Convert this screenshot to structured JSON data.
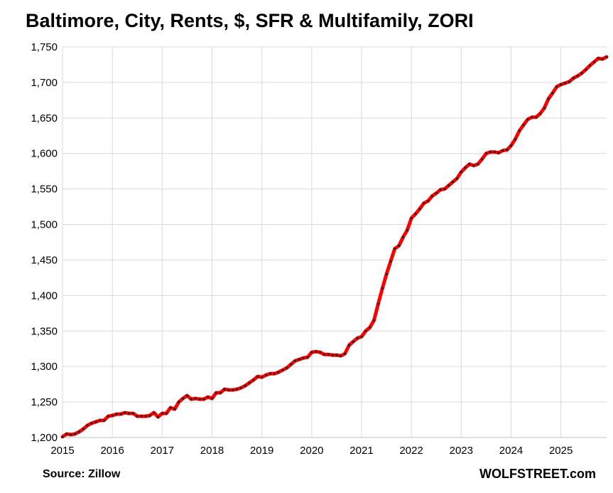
{
  "chart_data": {
    "type": "line",
    "title": "Baltimore, City, Rents, $, SFR & Multifamily, ZORI",
    "xlabel": "",
    "ylabel": "",
    "ylim": [
      1200,
      1750
    ],
    "xlim": [
      2015,
      2025.917
    ],
    "y_ticks": [
      1200,
      1250,
      1300,
      1350,
      1400,
      1450,
      1500,
      1550,
      1600,
      1650,
      1700,
      1750
    ],
    "y_tick_labels": [
      "1,200",
      "1,250",
      "1,300",
      "1,350",
      "1,400",
      "1,450",
      "1,500",
      "1,550",
      "1,600",
      "1,650",
      "1,700",
      "1,750"
    ],
    "x_ticks": [
      2015,
      2016,
      2017,
      2018,
      2019,
      2020,
      2021,
      2022,
      2023,
      2024,
      2025
    ],
    "x_tick_labels": [
      "2015",
      "2016",
      "2017",
      "2018",
      "2019",
      "2020",
      "2021",
      "2022",
      "2023",
      "2024",
      "2025"
    ],
    "grid": true,
    "legend": "none",
    "series": [
      {
        "color": "#ff0000",
        "marker_color": "#222222",
        "x": [
          2015.0,
          2015.083,
          2015.167,
          2015.25,
          2015.333,
          2015.417,
          2015.5,
          2015.583,
          2015.667,
          2015.75,
          2015.833,
          2015.917,
          2016.0,
          2016.083,
          2016.167,
          2016.25,
          2016.333,
          2016.417,
          2016.5,
          2016.583,
          2016.667,
          2016.75,
          2016.833,
          2016.917,
          2017.0,
          2017.083,
          2017.167,
          2017.25,
          2017.333,
          2017.417,
          2017.5,
          2017.583,
          2017.667,
          2017.75,
          2017.833,
          2017.917,
          2018.0,
          2018.083,
          2018.167,
          2018.25,
          2018.333,
          2018.417,
          2018.5,
          2018.583,
          2018.667,
          2018.75,
          2018.833,
          2018.917,
          2019.0,
          2019.083,
          2019.167,
          2019.25,
          2019.333,
          2019.417,
          2019.5,
          2019.583,
          2019.667,
          2019.75,
          2019.833,
          2019.917,
          2020.0,
          2020.083,
          2020.167,
          2020.25,
          2020.333,
          2020.417,
          2020.5,
          2020.583,
          2020.667,
          2020.75,
          2020.833,
          2020.917,
          2021.0,
          2021.083,
          2021.167,
          2021.25,
          2021.333,
          2021.417,
          2021.5,
          2021.583,
          2021.667,
          2021.75,
          2021.833,
          2021.917,
          2022.0,
          2022.083,
          2022.167,
          2022.25,
          2022.333,
          2022.417,
          2022.5,
          2022.583,
          2022.667,
          2022.75,
          2022.833,
          2022.917,
          2023.0,
          2023.083,
          2023.167,
          2023.25,
          2023.333,
          2023.417,
          2023.5,
          2023.583,
          2023.667,
          2023.75,
          2023.833,
          2023.917,
          2024.0,
          2024.083,
          2024.167,
          2024.25,
          2024.333,
          2024.417,
          2024.5,
          2024.583,
          2024.667,
          2024.75,
          2024.833,
          2024.917,
          2025.0,
          2025.083,
          2025.167,
          2025.25,
          2025.333,
          2025.417,
          2025.5,
          2025.583,
          2025.667,
          2025.75,
          2025.833,
          2025.917
        ],
        "y": [
          1201,
          1205,
          1204,
          1205,
          1208,
          1212,
          1217,
          1220,
          1222,
          1224,
          1224,
          1230,
          1231,
          1233,
          1233,
          1235,
          1234,
          1234,
          1230,
          1230,
          1230,
          1231,
          1235,
          1229,
          1234,
          1234,
          1242,
          1240,
          1250,
          1255,
          1259,
          1254,
          1255,
          1254,
          1254,
          1257,
          1255,
          1263,
          1263,
          1268,
          1267,
          1267,
          1268,
          1270,
          1273,
          1277,
          1281,
          1286,
          1285,
          1288,
          1290,
          1290,
          1292,
          1295,
          1298,
          1303,
          1308,
          1310,
          1312,
          1313,
          1320,
          1321,
          1320,
          1317,
          1317,
          1316,
          1316,
          1315,
          1318,
          1330,
          1335,
          1340,
          1342,
          1350,
          1355,
          1365,
          1388,
          1410,
          1430,
          1448,
          1466,
          1470,
          1482,
          1492,
          1509,
          1515,
          1522,
          1530,
          1533,
          1540,
          1544,
          1549,
          1550,
          1555,
          1560,
          1565,
          1574,
          1580,
          1585,
          1583,
          1585,
          1592,
          1600,
          1602,
          1602,
          1601,
          1604,
          1605,
          1611,
          1620,
          1632,
          1640,
          1648,
          1651,
          1651,
          1656,
          1664,
          1677,
          1685,
          1694,
          1697,
          1699,
          1701,
          1706,
          1709,
          1713,
          1718,
          1724,
          1729,
          1734,
          1733,
          1736
        ]
      }
    ]
  },
  "footer": {
    "source": "Source: Zillow",
    "brand": "WOLFSTREET.com"
  }
}
